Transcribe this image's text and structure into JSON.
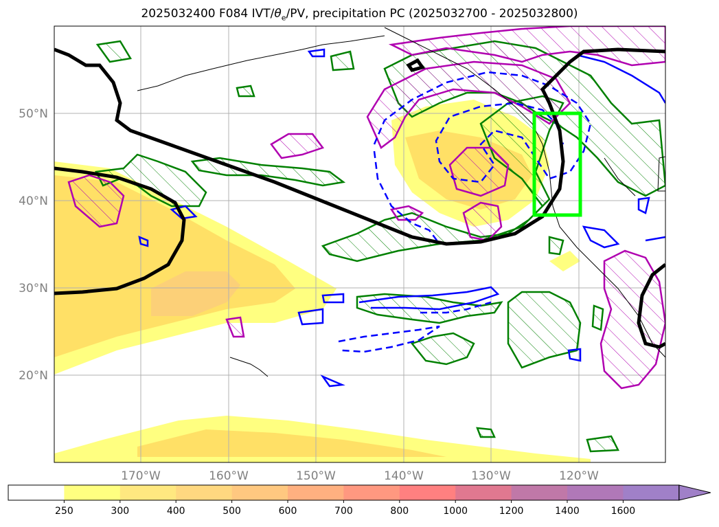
{
  "title": {
    "prefix": "2025032400 F084 IVT/",
    "theta": "θ",
    "theta_sub": "e",
    "suffix": "/PV, precipitation PC (2025032700 - 2025032800)"
  },
  "map": {
    "lat_labels": [
      "50°N",
      "40°N",
      "30°N",
      "20°N"
    ],
    "lon_labels": [
      "170°W",
      "160°W",
      "150°W",
      "140°W",
      "130°W",
      "120°W"
    ],
    "gridlines": true,
    "box_color": "#00ff00",
    "colors": {
      "ivt_low": "#ffff80",
      "ivt_mid": "#ffe066",
      "ivt_high": "#fcd078",
      "pv": "#000000",
      "theta_e": "#0000ff",
      "precip": "#008000",
      "pv_hatch": "#b000b0"
    }
  },
  "colorbar": {
    "levels": [
      "250",
      "300",
      "400",
      "500",
      "600",
      "700",
      "800",
      "1000",
      "1200",
      "1400",
      "1600"
    ],
    "colors": [
      "#ffffff",
      "#ffff80",
      "#ffe880",
      "#ffd880",
      "#ffc880",
      "#ffb080",
      "#ff9880",
      "#ff8080",
      "#e07890",
      "#c078a8",
      "#b078b8",
      "#a080c8"
    ],
    "extend": "max"
  }
}
